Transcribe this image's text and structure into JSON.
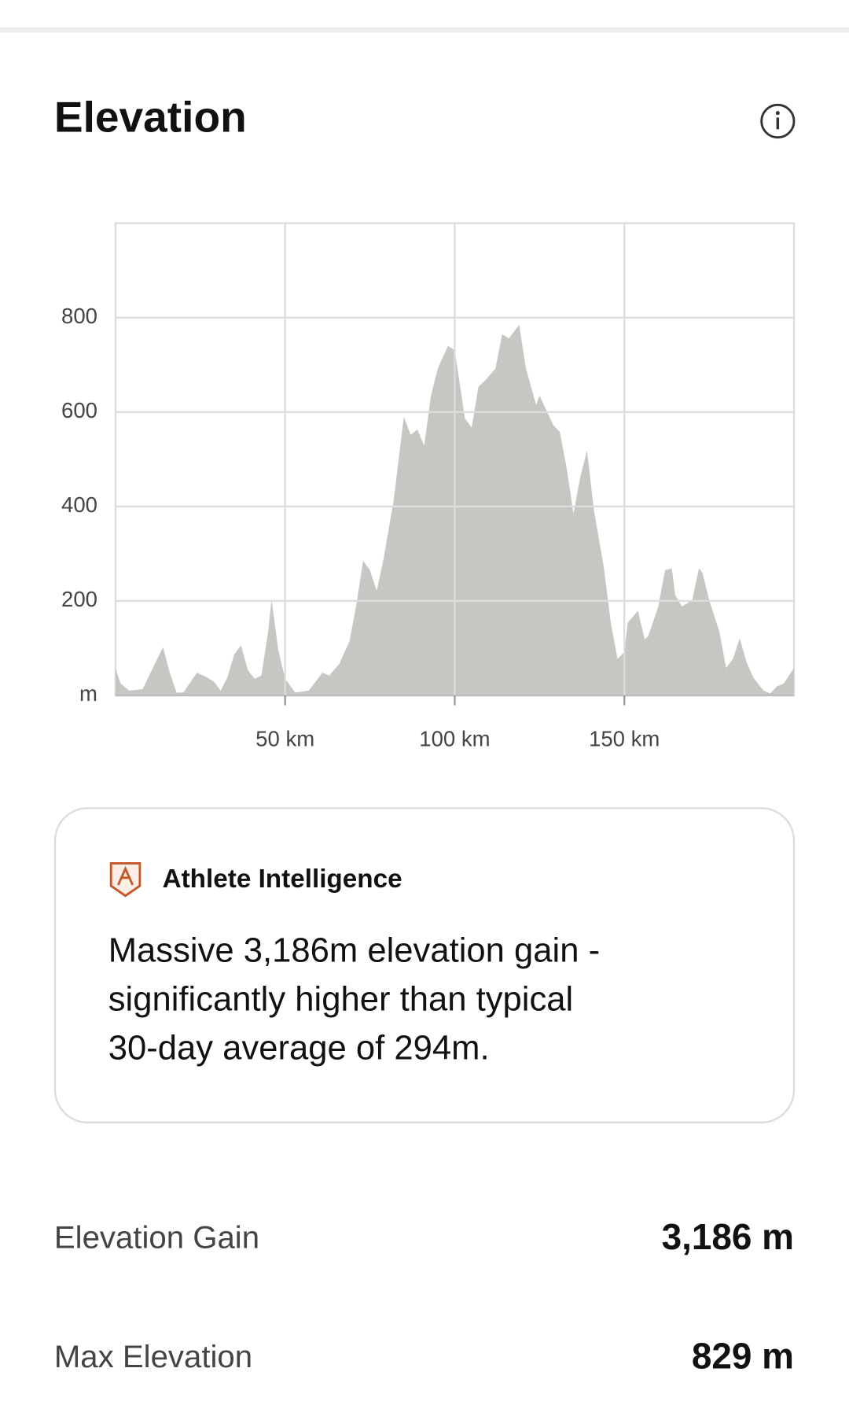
{
  "header": {
    "title": "Elevation"
  },
  "chart_data": {
    "type": "area",
    "x": [
      0,
      1.5,
      4,
      8,
      11,
      14,
      16,
      18,
      20,
      24,
      27,
      29,
      31,
      33,
      35,
      37,
      39,
      41,
      43,
      45,
      46,
      48,
      50,
      53,
      57,
      61,
      63,
      66,
      69,
      71,
      73,
      75,
      77,
      79,
      82,
      85,
      87,
      89,
      91,
      93,
      95,
      98,
      100,
      103,
      105,
      107,
      109,
      112,
      114,
      116,
      119,
      121,
      124,
      125,
      129,
      131,
      133,
      135,
      137,
      139,
      141,
      144,
      146,
      148,
      150,
      151,
      154,
      156,
      157,
      160,
      162,
      164,
      165,
      167,
      170,
      172,
      173,
      175,
      178,
      180,
      182,
      184,
      186,
      188,
      191,
      193,
      195,
      197,
      200
    ],
    "values": [
      58,
      25,
      10,
      13,
      58,
      102,
      48,
      6,
      6,
      48,
      38,
      29,
      10,
      38,
      87,
      106,
      54,
      35,
      42,
      135,
      202,
      96,
      35,
      6,
      10,
      48,
      42,
      67,
      115,
      192,
      285,
      265,
      221,
      288,
      413,
      590,
      552,
      563,
      529,
      635,
      692,
      740,
      731,
      587,
      567,
      654,
      667,
      692,
      765,
      756,
      785,
      692,
      615,
      635,
      573,
      558,
      481,
      385,
      462,
      519,
      394,
      269,
      154,
      77,
      92,
      154,
      179,
      119,
      125,
      188,
      265,
      269,
      212,
      188,
      202,
      269,
      260,
      202,
      135,
      58,
      77,
      121,
      71,
      38,
      10,
      4,
      19,
      25,
      58
    ],
    "color": "#c6c6c3",
    "xlim": [
      0,
      200
    ],
    "xticks": [
      {
        "value": 50,
        "label": "50 km"
      },
      {
        "value": 100,
        "label": "100 km"
      },
      {
        "value": 150,
        "label": "150 km"
      }
    ],
    "ylim": [
      0,
      1000
    ],
    "yticks": [
      {
        "value": 0,
        "label": "m"
      },
      200,
      400,
      600,
      800
    ],
    "grid": true
  },
  "insight": {
    "title": "Athlete Intelligence",
    "lines": [
      "Massive 3,186m elevation gain -",
      "significantly higher than typical",
      "30-day average of 294m."
    ]
  },
  "stats": [
    {
      "label": "Elevation Gain",
      "value": "3,186 m"
    },
    {
      "label": "Max Elevation",
      "value": "829 m"
    }
  ]
}
